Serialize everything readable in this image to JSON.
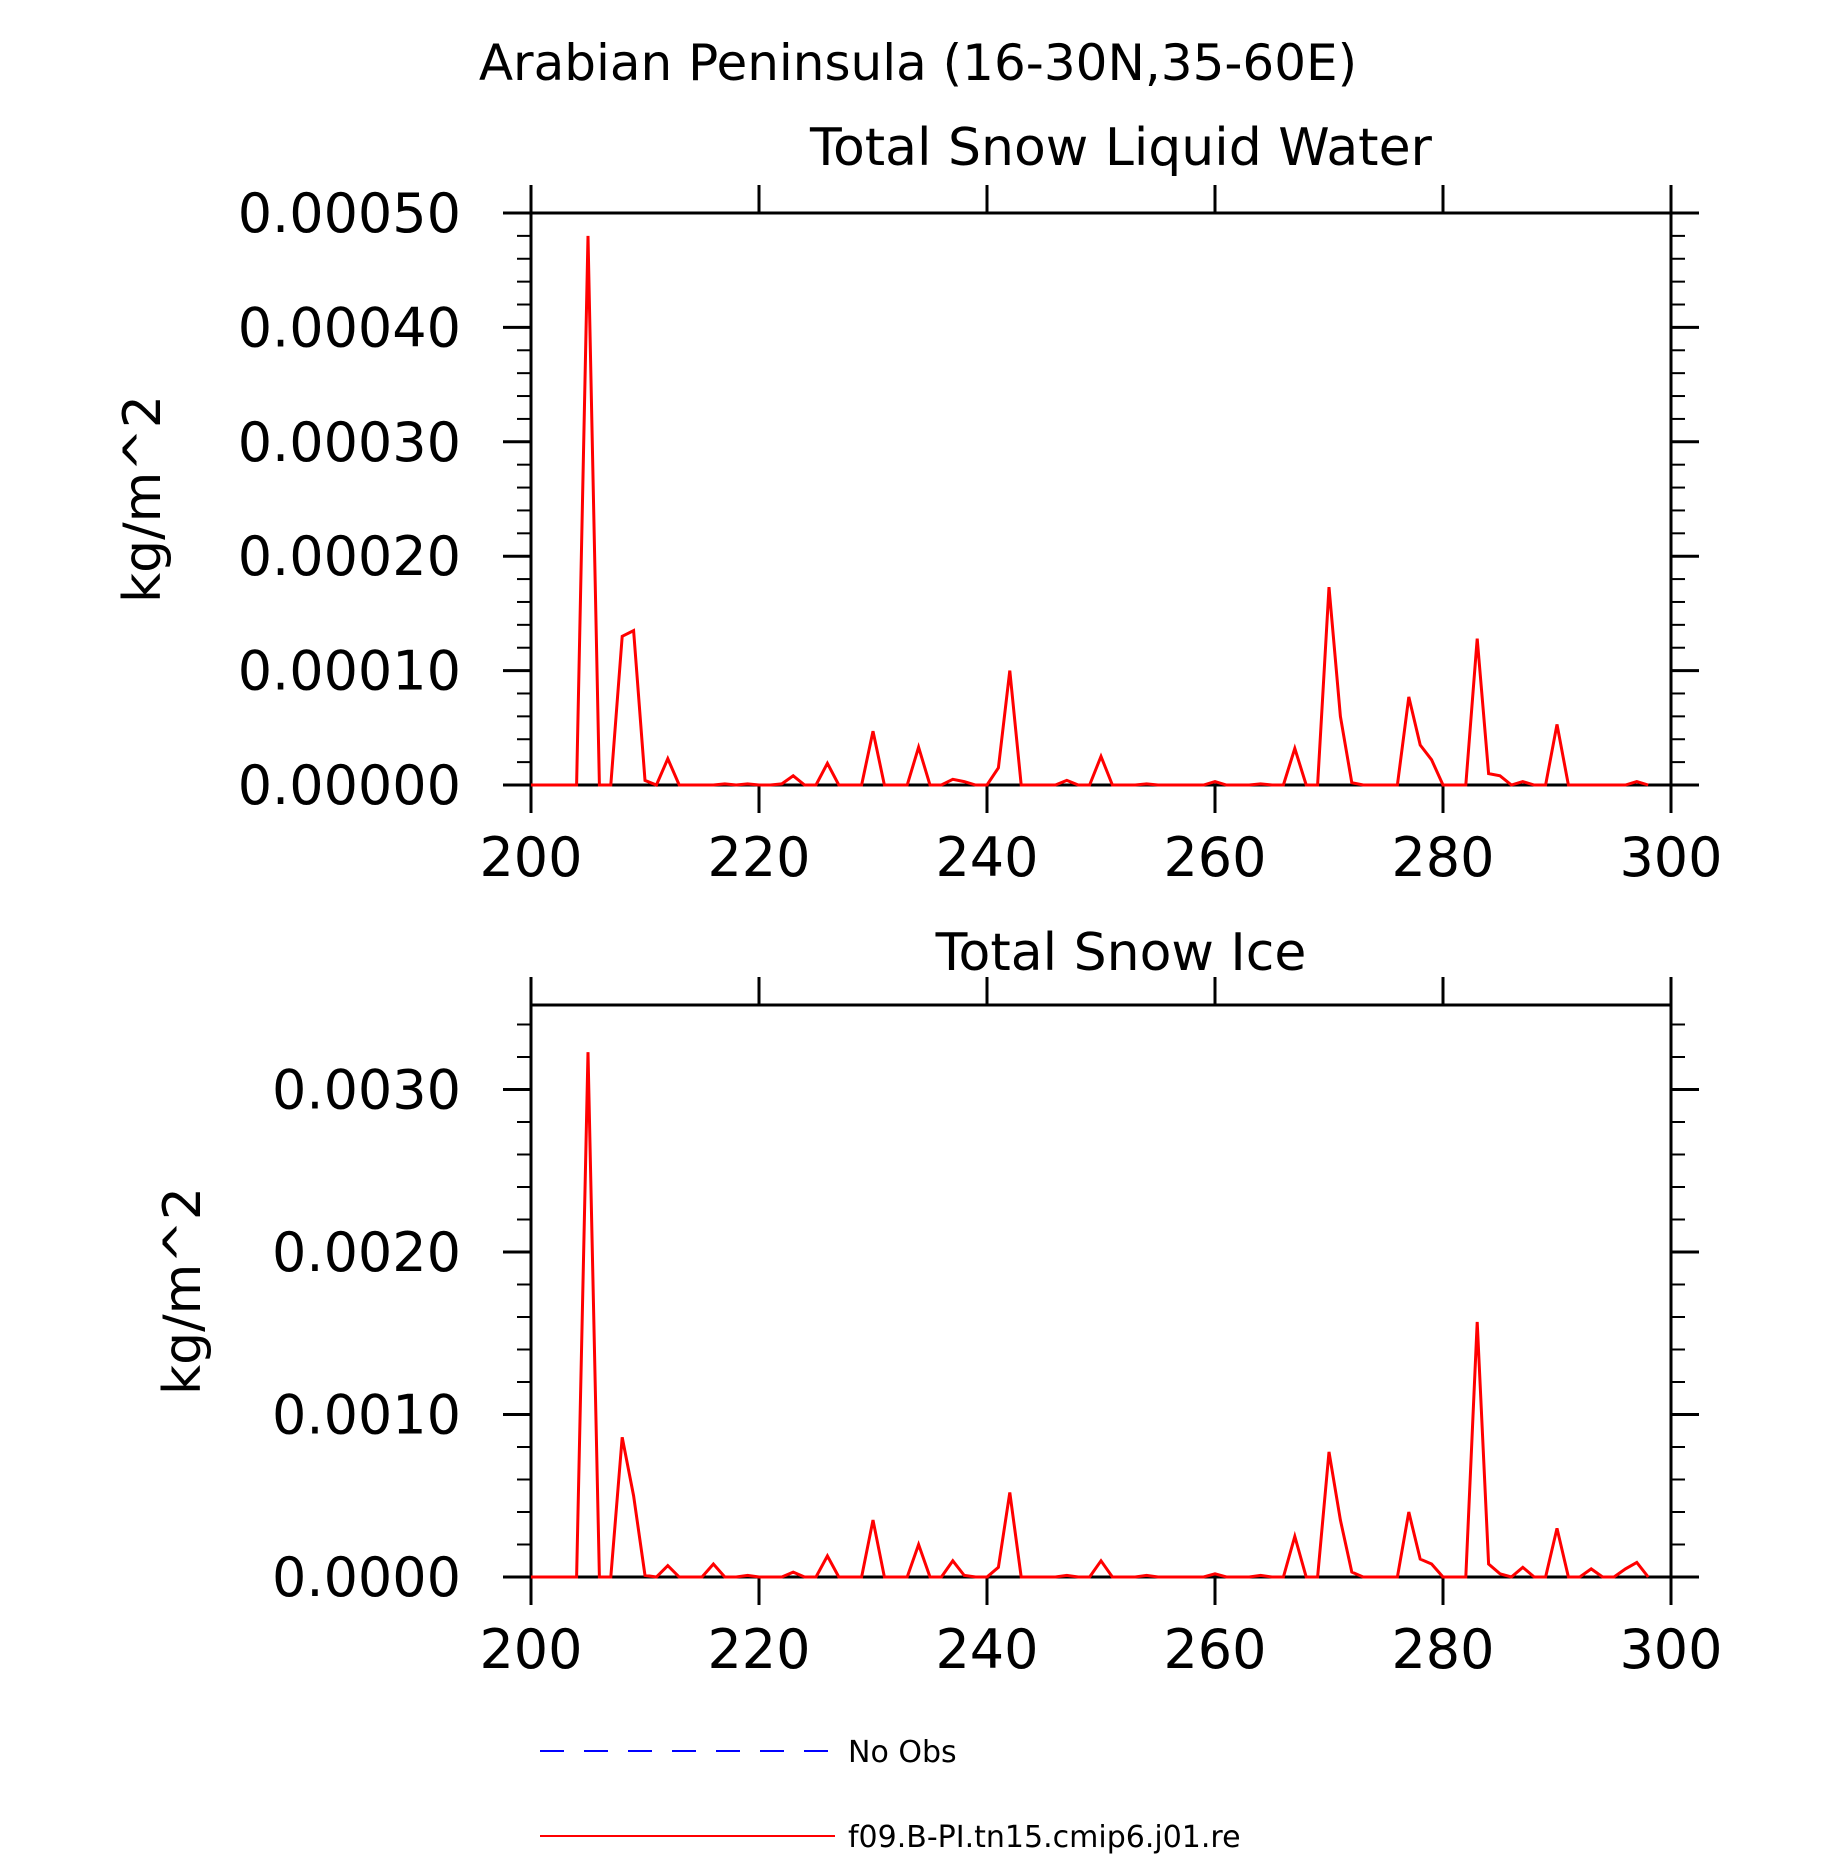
{
  "figure": {
    "title": "Arabian Peninsula (16-30N,35-60E)"
  },
  "chart_data": [
    {
      "type": "line",
      "title": "Total Snow Liquid Water",
      "xlabel": "",
      "ylabel": "kg/m^2",
      "xlim": [
        200,
        300
      ],
      "ylim": [
        0,
        0.0005
      ],
      "x_ticks": [
        200,
        220,
        240,
        260,
        280,
        300
      ],
      "x_tick_labels": [
        "200",
        "220",
        "240",
        "260",
        "280",
        "300"
      ],
      "y_ticks": [
        0,
        0.0001,
        0.0002,
        0.0003,
        0.0004,
        0.0005
      ],
      "y_tick_labels": [
        "0.00000",
        "0.00010",
        "0.00020",
        "0.00030",
        "0.00040",
        "0.00050"
      ],
      "x": [
        200,
        201,
        202,
        203,
        204,
        205,
        206,
        207,
        208,
        209,
        210,
        211,
        212,
        213,
        214,
        215,
        216,
        217,
        218,
        219,
        220,
        221,
        222,
        223,
        224,
        225,
        226,
        227,
        228,
        229,
        230,
        231,
        232,
        233,
        234,
        235,
        236,
        237,
        238,
        239,
        240,
        241,
        242,
        243,
        244,
        245,
        246,
        247,
        248,
        249,
        250,
        251,
        252,
        253,
        254,
        255,
        256,
        257,
        258,
        259,
        260,
        261,
        262,
        263,
        264,
        265,
        266,
        267,
        268,
        269,
        270,
        271,
        272,
        273,
        274,
        275,
        276,
        277,
        278,
        279,
        280,
        281,
        282,
        283,
        284,
        285,
        286,
        287,
        288,
        289,
        290,
        291,
        292,
        293,
        294,
        295,
        296,
        297,
        298
      ],
      "series": [
        {
          "name": "f09.B-PI.tn15.cmip6.j01.re",
          "color": "#ff0000",
          "values": [
            0,
            0,
            0,
            0,
            0,
            0.00048,
            0,
            0,
            0.00013,
            0.000135,
            4e-06,
            0,
            2.3e-05,
            0,
            0,
            0,
            0,
            1e-06,
            0,
            1e-06,
            0,
            0,
            1e-06,
            8e-06,
            0,
            0,
            1.9e-05,
            0,
            0,
            0,
            4.7e-05,
            0,
            0,
            0,
            3.3e-05,
            0,
            0,
            5e-06,
            3e-06,
            0,
            0,
            1.5e-05,
            0.0001,
            0,
            0,
            0,
            0,
            4e-06,
            0,
            0,
            2.5e-05,
            0,
            0,
            0,
            1e-06,
            0,
            0,
            0,
            0,
            0,
            3e-06,
            0,
            0,
            0,
            1e-06,
            0,
            0,
            3.2e-05,
            0,
            0,
            0.000173,
            6e-05,
            2e-06,
            0,
            0,
            0,
            0,
            7.7e-05,
            3.5e-05,
            2.2e-05,
            0,
            0,
            0,
            0.000128,
            1e-05,
            8e-06,
            0,
            3e-06,
            0,
            0,
            5.3e-05,
            0,
            0,
            0,
            0,
            0,
            0,
            3e-06,
            0
          ]
        }
      ]
    },
    {
      "type": "line",
      "title": "Total Snow Ice",
      "xlabel": "",
      "ylabel": "kg/m^2",
      "xlim": [
        200,
        300
      ],
      "ylim": [
        0,
        0.00352
      ],
      "x_ticks": [
        200,
        220,
        240,
        260,
        280,
        300
      ],
      "x_tick_labels": [
        "200",
        "220",
        "240",
        "260",
        "280",
        "300"
      ],
      "y_ticks": [
        0,
        0.001,
        0.002,
        0.003
      ],
      "y_tick_labels": [
        "0.0000",
        "0.0010",
        "0.0020",
        "0.0030"
      ],
      "x": [
        200,
        201,
        202,
        203,
        204,
        205,
        206,
        207,
        208,
        209,
        210,
        211,
        212,
        213,
        214,
        215,
        216,
        217,
        218,
        219,
        220,
        221,
        222,
        223,
        224,
        225,
        226,
        227,
        228,
        229,
        230,
        231,
        232,
        233,
        234,
        235,
        236,
        237,
        238,
        239,
        240,
        241,
        242,
        243,
        244,
        245,
        246,
        247,
        248,
        249,
        250,
        251,
        252,
        253,
        254,
        255,
        256,
        257,
        258,
        259,
        260,
        261,
        262,
        263,
        264,
        265,
        266,
        267,
        268,
        269,
        270,
        271,
        272,
        273,
        274,
        275,
        276,
        277,
        278,
        279,
        280,
        281,
        282,
        283,
        284,
        285,
        286,
        287,
        288,
        289,
        290,
        291,
        292,
        293,
        294,
        295,
        296,
        297,
        298
      ],
      "series": [
        {
          "name": "f09.B-PI.tn15.cmip6.j01.re",
          "color": "#ff0000",
          "values": [
            0,
            0,
            0,
            0,
            0,
            0.00323,
            0,
            0,
            0.00086,
            0.0005,
            1e-05,
            0,
            7e-05,
            0,
            0,
            0,
            8e-05,
            0,
            0,
            1e-05,
            0,
            0,
            0,
            3e-05,
            0,
            0,
            0.00013,
            0,
            0,
            0,
            0.00035,
            0,
            0,
            0,
            0.0002,
            0,
            0,
            0.0001,
            1e-05,
            0,
            0,
            6e-05,
            0.00052,
            0,
            0,
            0,
            0,
            1e-05,
            0,
            0,
            0.0001,
            0,
            0,
            0,
            1e-05,
            0,
            0,
            0,
            0,
            0,
            2e-05,
            0,
            0,
            0,
            1e-05,
            0,
            0,
            0.00025,
            0,
            0,
            0.00077,
            0.00035,
            3e-05,
            0,
            0,
            0,
            0,
            0.0004,
            0.00011,
            8e-05,
            0,
            0,
            0,
            0.00157,
            8e-05,
            2e-05,
            0,
            6e-05,
            0,
            0,
            0.0003,
            0,
            0,
            5e-05,
            0,
            0,
            5e-05,
            9e-05,
            0
          ]
        }
      ]
    }
  ],
  "legend": {
    "entries": [
      {
        "label": "No Obs",
        "color": "#0000ff",
        "style": "dashed"
      },
      {
        "label": "f09.B-PI.tn15.cmip6.j01.re",
        "color": "#ff0000",
        "style": "solid"
      }
    ]
  }
}
